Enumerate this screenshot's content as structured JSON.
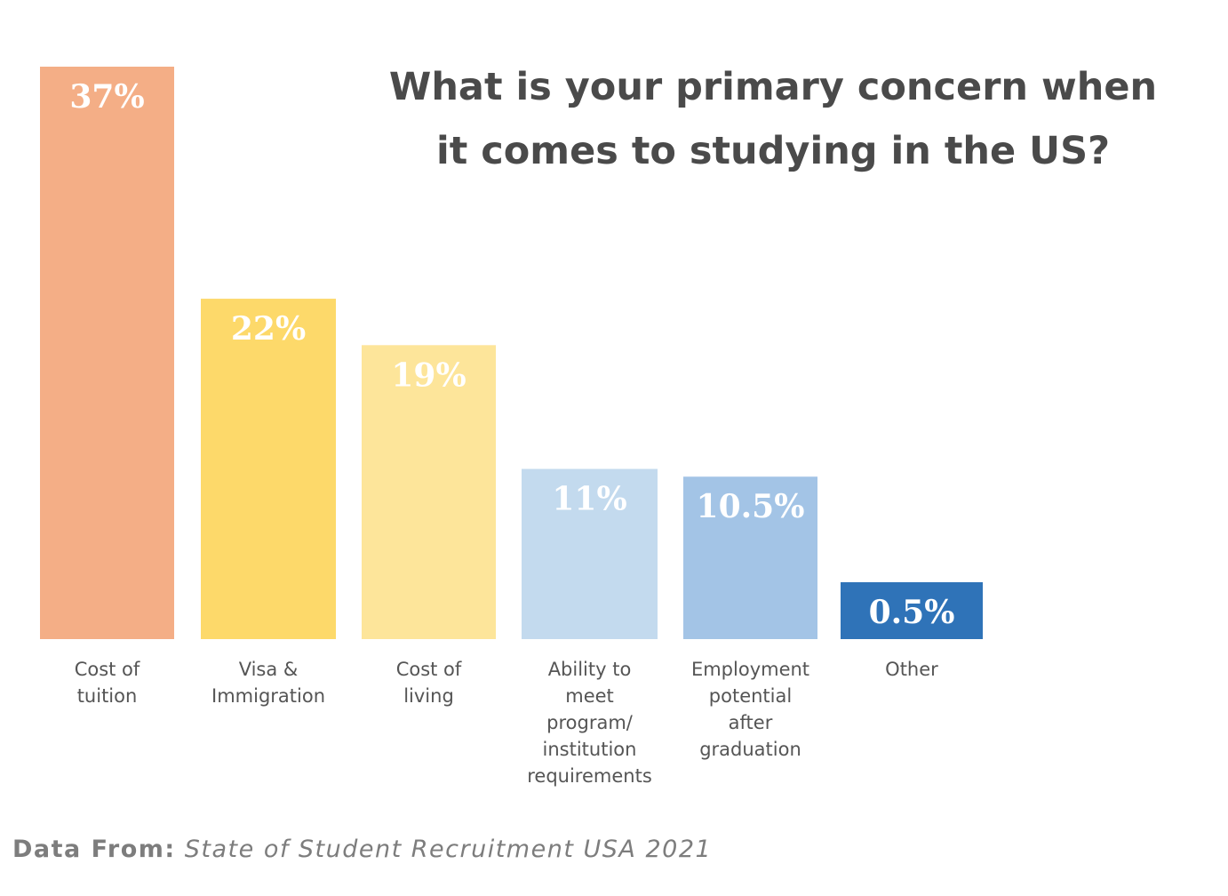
{
  "chart_data": {
    "type": "bar",
    "title": "What is your primary concern when it comes to studying in the US?",
    "title_lines": [
      "What is your primary concern when",
      "it comes to studying in the US?"
    ],
    "categories": [
      "Cost of tuition",
      "Visa & Immigration",
      "Cost of living",
      "Ability to meet program/ institution requirements",
      "Employment potential after graduation",
      "Other"
    ],
    "category_label_lines": [
      [
        "Cost of",
        "tuition"
      ],
      [
        "Visa &",
        "Immigration"
      ],
      [
        "Cost of",
        "living"
      ],
      [
        "Ability to",
        "meet",
        "program/",
        "institution",
        "requirements"
      ],
      [
        "Employment",
        "potential",
        "after",
        "graduation"
      ],
      [
        "Other"
      ]
    ],
    "values": [
      37,
      22,
      19,
      11,
      10.5,
      0.5
    ],
    "value_labels": [
      "37%",
      "22%",
      "19%",
      "11%",
      "10.5%",
      "0.5%"
    ],
    "bar_colors": [
      "#F4AE86",
      "#FDD96A",
      "#FDE59A",
      "#C3DAEE",
      "#A3C4E6",
      "#2F73B8"
    ],
    "unit": "%",
    "xlabel": "",
    "ylabel": "",
    "ylim": [
      0,
      37
    ],
    "grid": false,
    "legend": "none"
  },
  "source": {
    "label": "Data From:",
    "text": "State of Student Recruitment USA 2021"
  }
}
